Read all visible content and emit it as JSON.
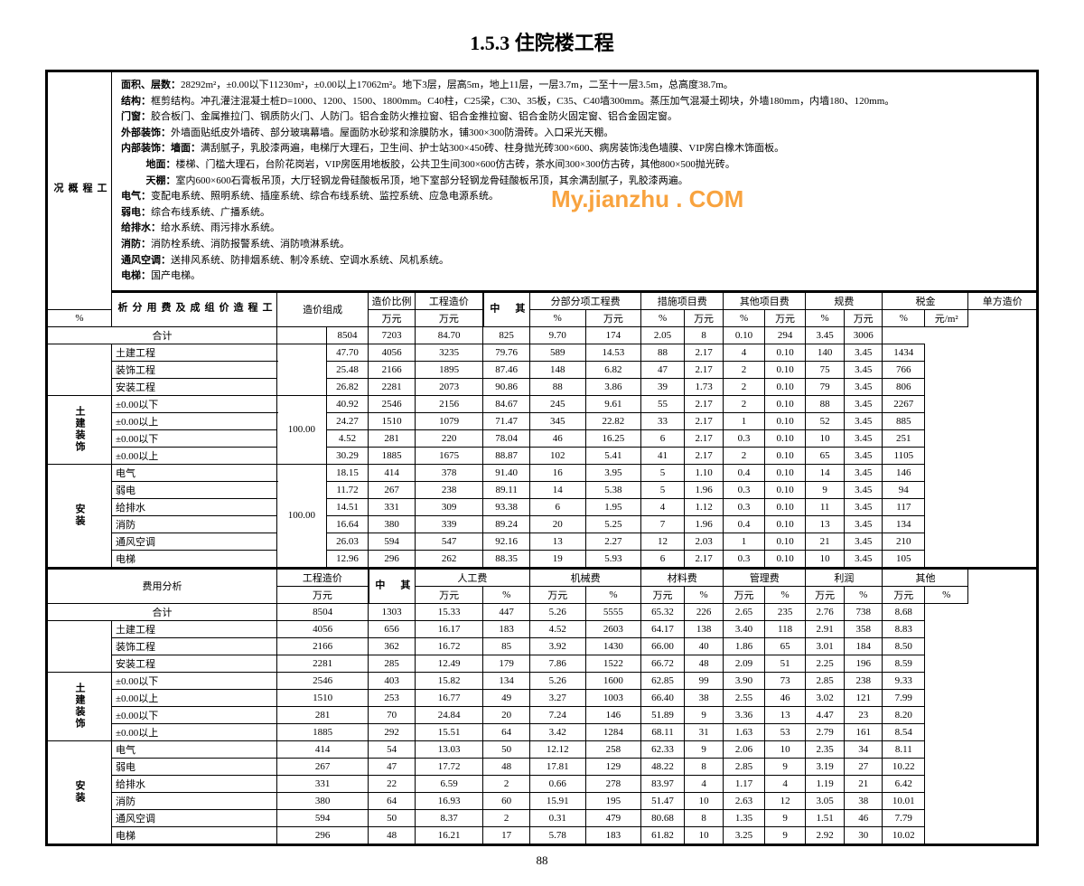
{
  "title": "1.5.3 住院楼工程",
  "page_no": "88",
  "watermark": "My.jianzhu . COM",
  "desc": {
    "k1": "面积、层数：",
    "v1": "28292m²，±0.00以下11230m²，±0.00以上17062m²。地下3层，层高5m，地上11层，一层3.7m，二至十一层3.5m，总高度38.7m。",
    "k2": "结构：",
    "v2": "框剪结构。冲孔灌注混凝土桩D=1000、1200、1500、1800mm。C40柱，C25梁，C30、35板，C35、C40墙300mm。蒸压加气混凝土砌块，外墙180mm，内墙180、120mm。",
    "k3": "门窗：",
    "v3": "胶合板门、金属推拉门、钢质防火门、人防门。铝合金防火推拉窗、铝合金推拉窗、铝合金防火固定窗、铝合金固定窗。",
    "k4": "外部装饰：",
    "v4": "外墙面贴纸皮外墙砖、部分玻璃幕墙。屋面防水砂浆和涂膜防水，铺300×300防滑砖。入口采光天棚。",
    "k5": "内部装饰：",
    "k5a": "墙面：",
    "v5a": "满刮腻子，乳胶漆两遍，电梯厅大理石，卫生间、护士站300×450砖、柱身抛光砖300×600、病房装饰浅色墙膜、VIP房白橡木饰面板。",
    "k5b": "地面：",
    "v5b": "楼梯、门槛大理石，台阶花岗岩，VIP房医用地板胶，公共卫生间300×600仿古砖，茶水间300×300仿古砖，其他800×500抛光砖。",
    "k5c": "天棚：",
    "v5c": "室内600×600石膏板吊顶，大厅轻钢龙骨硅酸板吊顶，地下室部分轻钢龙骨硅酸板吊顶，其余满刮腻子，乳胶漆两遍。",
    "k6": "电气：",
    "v6": "变配电系统、照明系统、插座系统、综合布线系统、监控系统、应急电源系统。",
    "k7": "弱电：",
    "v7": "综合布线系统、广播系统。",
    "k8": "给排水：",
    "v8": "给水系统、雨污排水系统。",
    "k9": "消防：",
    "v9": "消防栓系统、消防报警系统、消防喷淋系统。",
    "k10": "通风空调：",
    "v10": "送排风系统、防排烟系统、制冷系统、空调水系统、风机系统。",
    "k11": "电梯：",
    "v11": "国产电梯。"
  },
  "t1": {
    "h": {
      "c1": "造价组成",
      "c2": "造价比例",
      "c2u": "%",
      "c3": "工程造价",
      "c3u": "万元",
      "m": "其中",
      "c4": "分部分项工程费",
      "c5": "措施项目费",
      "c6": "其他项目费",
      "c7": "规费",
      "c8": "税金",
      "c9": "单方造价",
      "u1": "万元",
      "u2": "%",
      "u3": "元/m²"
    },
    "sub": {
      "a": "土建装饰",
      "b": "安装"
    },
    "rows": [
      [
        "合计",
        "",
        "",
        "8504",
        "7203",
        "84.70",
        "825",
        "9.70",
        "174",
        "2.05",
        "8",
        "0.10",
        "294",
        "3.45",
        "3006"
      ],
      [
        "",
        "土建工程",
        "",
        "47.70",
        "4056",
        "3235",
        "79.76",
        "589",
        "14.53",
        "88",
        "2.17",
        "4",
        "0.10",
        "140",
        "3.45",
        "1434"
      ],
      [
        "",
        "装饰工程",
        "100.00",
        "25.48",
        "2166",
        "1895",
        "87.46",
        "148",
        "6.82",
        "47",
        "2.17",
        "2",
        "0.10",
        "75",
        "3.45",
        "766"
      ],
      [
        "",
        "安装工程",
        "",
        "26.82",
        "2281",
        "2073",
        "90.86",
        "88",
        "3.86",
        "39",
        "1.73",
        "2",
        "0.10",
        "79",
        "3.45",
        "806"
      ],
      [
        "",
        "±0.00以下",
        "",
        "40.92",
        "2546",
        "2156",
        "84.67",
        "245",
        "9.61",
        "55",
        "2.17",
        "2",
        "0.10",
        "88",
        "3.45",
        "2267"
      ],
      [
        "",
        "±0.00以上",
        "100.00",
        "24.27",
        "1510",
        "1079",
        "71.47",
        "345",
        "22.82",
        "33",
        "2.17",
        "1",
        "0.10",
        "52",
        "3.45",
        "885"
      ],
      [
        "",
        "±0.00以下",
        "",
        "4.52",
        "281",
        "220",
        "78.04",
        "46",
        "16.25",
        "6",
        "2.17",
        "0.3",
        "0.10",
        "10",
        "3.45",
        "251"
      ],
      [
        "",
        "±0.00以上",
        "",
        "30.29",
        "1885",
        "1675",
        "88.87",
        "102",
        "5.41",
        "41",
        "2.17",
        "2",
        "0.10",
        "65",
        "3.45",
        "1105"
      ],
      [
        "",
        "电气",
        "",
        "18.15",
        "414",
        "378",
        "91.40",
        "16",
        "3.95",
        "5",
        "1.10",
        "0.4",
        "0.10",
        "14",
        "3.45",
        "146"
      ],
      [
        "",
        "弱电",
        "",
        "11.72",
        "267",
        "238",
        "89.11",
        "14",
        "5.38",
        "5",
        "1.96",
        "0.3",
        "0.10",
        "9",
        "3.45",
        "94"
      ],
      [
        "",
        "给排水",
        "100.00",
        "14.51",
        "331",
        "309",
        "93.38",
        "6",
        "1.95",
        "4",
        "1.12",
        "0.3",
        "0.10",
        "11",
        "3.45",
        "117"
      ],
      [
        "",
        "消防",
        "",
        "16.64",
        "380",
        "339",
        "89.24",
        "20",
        "5.25",
        "7",
        "1.96",
        "0.4",
        "0.10",
        "13",
        "3.45",
        "134"
      ],
      [
        "",
        "通风空调",
        "",
        "26.03",
        "594",
        "547",
        "92.16",
        "13",
        "2.27",
        "12",
        "2.03",
        "1",
        "0.10",
        "21",
        "3.45",
        "210"
      ],
      [
        "",
        "电梯",
        "",
        "12.96",
        "296",
        "262",
        "88.35",
        "19",
        "5.93",
        "6",
        "2.17",
        "0.3",
        "0.10",
        "10",
        "3.45",
        "105"
      ]
    ]
  },
  "t2": {
    "h": {
      "c1": "费用分析",
      "c2": "工程造价",
      "c2u": "万元",
      "m": "其中",
      "c3": "人工费",
      "c4": "机械费",
      "c5": "材料费",
      "c6": "管理费",
      "c7": "利润",
      "c8": "其他",
      "u1": "万元",
      "u2": "%"
    },
    "rows": [
      [
        "合计",
        "",
        "8504",
        "1303",
        "15.33",
        "447",
        "5.26",
        "5555",
        "65.32",
        "226",
        "2.65",
        "235",
        "2.76",
        "738",
        "8.68"
      ],
      [
        "",
        "土建工程",
        "4056",
        "656",
        "16.17",
        "183",
        "4.52",
        "2603",
        "64.17",
        "138",
        "3.40",
        "118",
        "2.91",
        "358",
        "8.83"
      ],
      [
        "",
        "装饰工程",
        "2166",
        "362",
        "16.72",
        "85",
        "3.92",
        "1430",
        "66.00",
        "40",
        "1.86",
        "65",
        "3.01",
        "184",
        "8.50"
      ],
      [
        "",
        "安装工程",
        "2281",
        "285",
        "12.49",
        "179",
        "7.86",
        "1522",
        "66.72",
        "48",
        "2.09",
        "51",
        "2.25",
        "196",
        "8.59"
      ],
      [
        "",
        "±0.00以下",
        "2546",
        "403",
        "15.82",
        "134",
        "5.26",
        "1600",
        "62.85",
        "99",
        "3.90",
        "73",
        "2.85",
        "238",
        "9.33"
      ],
      [
        "",
        "±0.00以上",
        "1510",
        "253",
        "16.77",
        "49",
        "3.27",
        "1003",
        "66.40",
        "38",
        "2.55",
        "46",
        "3.02",
        "121",
        "7.99"
      ],
      [
        "",
        "±0.00以下",
        "281",
        "70",
        "24.84",
        "20",
        "7.24",
        "146",
        "51.89",
        "9",
        "3.36",
        "13",
        "4.47",
        "23",
        "8.20"
      ],
      [
        "",
        "±0.00以上",
        "1885",
        "292",
        "15.51",
        "64",
        "3.42",
        "1284",
        "68.11",
        "31",
        "1.63",
        "53",
        "2.79",
        "161",
        "8.54"
      ],
      [
        "",
        "电气",
        "414",
        "54",
        "13.03",
        "50",
        "12.12",
        "258",
        "62.33",
        "9",
        "2.06",
        "10",
        "2.35",
        "34",
        "8.11"
      ],
      [
        "",
        "弱电",
        "267",
        "47",
        "17.72",
        "48",
        "17.81",
        "129",
        "48.22",
        "8",
        "2.85",
        "9",
        "3.19",
        "27",
        "10.22"
      ],
      [
        "",
        "给排水",
        "331",
        "22",
        "6.59",
        "2",
        "0.66",
        "278",
        "83.97",
        "4",
        "1.17",
        "4",
        "1.19",
        "21",
        "6.42"
      ],
      [
        "",
        "消防",
        "380",
        "64",
        "16.93",
        "60",
        "15.91",
        "195",
        "51.47",
        "10",
        "2.63",
        "12",
        "3.05",
        "38",
        "10.01"
      ],
      [
        "",
        "通风空调",
        "594",
        "50",
        "8.37",
        "2",
        "0.31",
        "479",
        "80.68",
        "8",
        "1.35",
        "9",
        "1.51",
        "46",
        "7.79"
      ],
      [
        "",
        "电梯",
        "296",
        "48",
        "16.21",
        "17",
        "5.78",
        "183",
        "61.82",
        "10",
        "3.25",
        "9",
        "2.92",
        "30",
        "10.02"
      ]
    ]
  }
}
